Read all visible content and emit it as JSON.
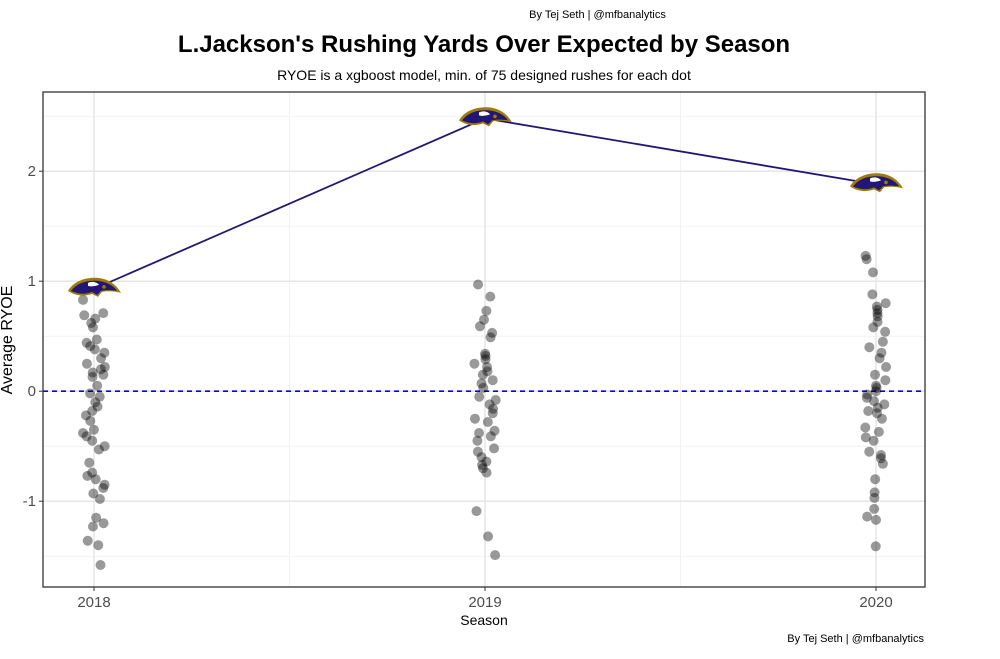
{
  "header": {
    "credit_top": "By Tej Seth | @mfbanalytics",
    "title": "L.Jackson's Rushing Yards Over Expected by Season",
    "subtitle": "RYOE is a xgboost model, min. of 75 designed rushes for each dot"
  },
  "footer": {
    "credit_bottom": "By Tej Seth | @mfbanalytics"
  },
  "colors": {
    "line": "#241773",
    "hline": "#0000ff",
    "points": "#000000",
    "logo_purple": "#241773",
    "logo_gold": "#9e7c0c"
  },
  "chart_data": {
    "type": "scatter",
    "title": "L.Jackson's Rushing Yards Over Expected by Season",
    "subtitle": "RYOE is a xgboost model, min. of 75 designed rushes for each dot",
    "xlabel": "Season",
    "ylabel": "Average RYOE",
    "categories": [
      "2018",
      "2019",
      "2020"
    ],
    "ylim": [
      -1.78,
      2.72
    ],
    "yticks": [
      -1,
      0,
      1,
      2
    ],
    "grid": true,
    "reference_line": {
      "y": 0,
      "style": "dashed",
      "color": "#0000ff"
    },
    "average_line": {
      "name": "",
      "values": [
        0.93,
        2.48,
        1.88
      ],
      "marker": "team-logo"
    },
    "points": [
      {
        "season": "2018",
        "values": [
          0.83,
          0.71,
          0.69,
          0.66,
          0.62,
          0.58,
          0.47,
          0.44,
          0.41,
          0.38,
          0.35,
          0.3,
          0.25,
          0.22,
          0.2,
          0.17,
          0.15,
          0.13,
          0.05,
          -0.02,
          -0.05,
          -0.1,
          -0.14,
          -0.18,
          -0.22,
          -0.27,
          -0.35,
          -0.38,
          -0.41,
          -0.45,
          -0.5,
          -0.53,
          -0.65,
          -0.74,
          -0.77,
          -0.8,
          -0.85,
          -0.88,
          -0.93,
          -0.98,
          -1.15,
          -1.2,
          -1.23,
          -1.36,
          -1.4,
          -1.58
        ]
      },
      {
        "season": "2019",
        "values": [
          0.97,
          0.86,
          0.73,
          0.65,
          0.59,
          0.53,
          0.49,
          0.34,
          0.32,
          0.29,
          0.25,
          0.22,
          0.18,
          0.15,
          0.1,
          0.07,
          0.03,
          -0.05,
          -0.08,
          -0.12,
          -0.16,
          -0.2,
          -0.25,
          -0.28,
          -0.36,
          -0.38,
          -0.41,
          -0.45,
          -0.52,
          -0.55,
          -0.6,
          -0.64,
          -0.67,
          -0.7,
          -0.74,
          -1.09,
          -1.32,
          -1.49
        ]
      },
      {
        "season": "2020",
        "values": [
          1.23,
          1.2,
          1.08,
          0.88,
          0.8,
          0.77,
          0.74,
          0.71,
          0.68,
          0.63,
          0.58,
          0.54,
          0.45,
          0.4,
          0.35,
          0.3,
          0.22,
          0.15,
          0.1,
          0.05,
          0.03,
          0.0,
          -0.03,
          -0.06,
          -0.09,
          -0.12,
          -0.15,
          -0.18,
          -0.2,
          -0.25,
          -0.33,
          -0.37,
          -0.42,
          -0.45,
          -0.55,
          -0.58,
          -0.61,
          -0.66,
          -0.8,
          -0.92,
          -0.97,
          -1.07,
          -1.14,
          -1.17,
          -1.41
        ]
      }
    ]
  }
}
